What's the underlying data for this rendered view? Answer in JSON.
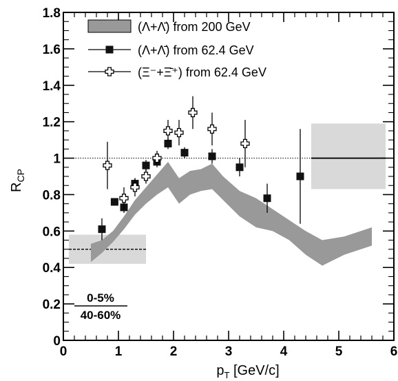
{
  "chart_data": {
    "type": "scatter",
    "xlabel": "p",
    "xlabel_sub": "T",
    "xlabel_unit": " [GeV/c]",
    "ylabel": "R",
    "ylabel_sub": "CP",
    "xlim": [
      0,
      6
    ],
    "ylim": [
      0,
      1.8
    ],
    "x_ticks": [
      "0",
      "1",
      "2",
      "3",
      "4",
      "5",
      "6"
    ],
    "y_ticks": [
      "0",
      "0.2",
      "0.4",
      "0.6",
      "0.8",
      "1",
      "1.2",
      "1.4",
      "1.6",
      "1.8"
    ],
    "reference_line": 1.0,
    "centrality_numerator": "0-5%",
    "centrality_denominator": "40-60%",
    "legend_position": "top-left",
    "colors": {
      "band_200": "#999999",
      "sys_box": "#d9d9d9",
      "markers": "#111111"
    },
    "legend": [
      {
        "label": "(Λ+Λ̄) from 200 GeV",
        "style": "band"
      },
      {
        "label": "(Λ+Λ̄) from 62.4 GeV",
        "style": "filled-square"
      },
      {
        "label": "(Ξ⁻+Ξ̄⁺) from 62.4 GeV",
        "style": "open-cross"
      }
    ],
    "series": [
      {
        "name": "(Λ+Λ̄) from 200 GeV",
        "style": "band",
        "x": [
          0.5,
          0.7,
          0.9,
          1.1,
          1.3,
          1.5,
          1.7,
          1.9,
          2.1,
          2.3,
          2.5,
          2.7,
          2.9,
          3.2,
          3.5,
          3.8,
          4.1,
          4.4,
          4.7,
          5.1,
          5.6
        ],
        "upper": [
          0.53,
          0.55,
          0.6,
          0.68,
          0.77,
          0.84,
          0.91,
          0.98,
          0.89,
          0.93,
          0.94,
          0.97,
          0.9,
          0.82,
          0.78,
          0.72,
          0.66,
          0.6,
          0.55,
          0.57,
          0.62
        ],
        "lower": [
          0.43,
          0.48,
          0.54,
          0.61,
          0.69,
          0.75,
          0.8,
          0.84,
          0.75,
          0.8,
          0.82,
          0.83,
          0.77,
          0.68,
          0.62,
          0.6,
          0.55,
          0.47,
          0.41,
          0.47,
          0.52
        ]
      },
      {
        "name": "(Λ+Λ̄) from 62.4 GeV",
        "style": "filled-square",
        "points": [
          {
            "x": 0.7,
            "y": 0.61,
            "err": 0.06
          },
          {
            "x": 0.93,
            "y": 0.76,
            "err": 0.02
          },
          {
            "x": 1.1,
            "y": 0.73,
            "err": 0.03
          },
          {
            "x": 1.3,
            "y": 0.86,
            "err": 0.03
          },
          {
            "x": 1.5,
            "y": 0.96,
            "err": 0.03
          },
          {
            "x": 1.7,
            "y": 0.98,
            "err": 0.03
          },
          {
            "x": 1.9,
            "y": 1.08,
            "err": 0.03
          },
          {
            "x": 2.2,
            "y": 1.03,
            "err": 0.03
          },
          {
            "x": 2.7,
            "y": 1.01,
            "err": 0.04
          },
          {
            "x": 3.2,
            "y": 0.95,
            "err": 0.05
          },
          {
            "x": 3.7,
            "y": 0.78,
            "err": 0.08
          },
          {
            "x": 4.3,
            "y": 0.9,
            "err": 0.26
          }
        ]
      },
      {
        "name": "(Ξ⁻+Ξ̄⁺) from 62.4 GeV",
        "style": "open-cross",
        "points": [
          {
            "x": 0.8,
            "y": 0.96,
            "err": 0.13
          },
          {
            "x": 1.1,
            "y": 0.78,
            "err": 0.06
          },
          {
            "x": 1.3,
            "y": 0.84,
            "err": 0.05
          },
          {
            "x": 1.5,
            "y": 0.9,
            "err": 0.04
          },
          {
            "x": 1.7,
            "y": 1.0,
            "err": 0.04
          },
          {
            "x": 1.9,
            "y": 1.15,
            "err": 0.06
          },
          {
            "x": 2.1,
            "y": 1.14,
            "err": 0.07
          },
          {
            "x": 2.35,
            "y": 1.25,
            "err": 0.09
          },
          {
            "x": 2.7,
            "y": 1.16,
            "err": 0.09
          },
          {
            "x": 3.3,
            "y": 1.08,
            "err": 0.13
          }
        ]
      }
    ],
    "systematic_boxes": [
      {
        "x": [
          0.1,
          1.5
        ],
        "y": [
          0.42,
          0.58
        ],
        "line": 0.5,
        "dashed": true
      },
      {
        "x": [
          4.5,
          5.85
        ],
        "y": [
          0.83,
          1.19
        ],
        "line": 1.0,
        "dashed": false
      }
    ]
  }
}
